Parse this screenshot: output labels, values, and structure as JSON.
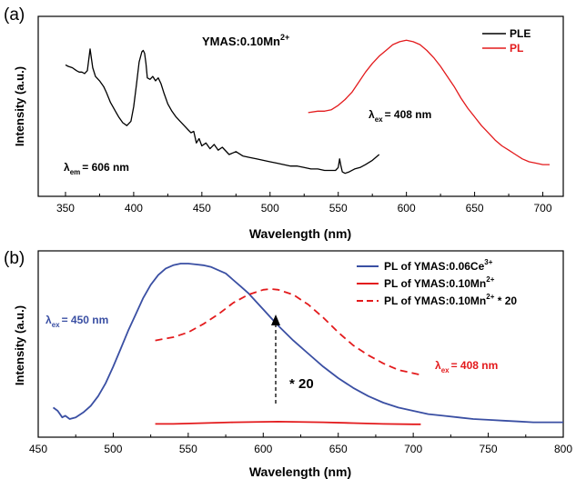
{
  "chart_data": [
    {
      "panel_label": "(a)",
      "type": "line",
      "title": "YMAS:0.10Mn",
      "title_sup": "2+",
      "xlabel": "Wavelength (nm)",
      "ylabel": "Intensity (a.u.)",
      "xlim": [
        330,
        715
      ],
      "xticks": [
        350,
        400,
        450,
        500,
        550,
        600,
        650,
        700
      ],
      "ylim": [
        0,
        1.1
      ],
      "legend_position": "top-right",
      "series": [
        {
          "name": "PLE",
          "color": "#000000",
          "x": [
            350,
            352,
            355,
            358,
            360,
            362,
            364,
            366,
            368,
            370,
            372,
            375,
            378,
            380,
            383,
            386,
            389,
            392,
            395,
            398,
            400,
            402,
            404,
            406,
            407,
            408,
            409,
            410,
            412,
            414,
            416,
            418,
            420,
            422,
            425,
            428,
            431,
            434,
            437,
            440,
            442,
            444,
            446,
            448,
            450,
            453,
            456,
            459,
            462,
            465,
            470,
            475,
            480,
            485,
            490,
            495,
            500,
            505,
            510,
            515,
            520,
            525,
            530,
            535,
            540,
            545,
            548,
            550,
            551,
            552,
            553,
            555,
            558,
            562,
            566,
            570,
            575,
            580
          ],
          "y": [
            0.84,
            0.83,
            0.82,
            0.8,
            0.79,
            0.79,
            0.78,
            0.8,
            0.95,
            0.82,
            0.76,
            0.73,
            0.69,
            0.65,
            0.58,
            0.53,
            0.48,
            0.44,
            0.42,
            0.45,
            0.55,
            0.7,
            0.86,
            0.93,
            0.94,
            0.92,
            0.85,
            0.75,
            0.74,
            0.76,
            0.73,
            0.75,
            0.71,
            0.65,
            0.57,
            0.52,
            0.48,
            0.45,
            0.42,
            0.39,
            0.37,
            0.38,
            0.3,
            0.33,
            0.28,
            0.3,
            0.26,
            0.29,
            0.25,
            0.27,
            0.22,
            0.24,
            0.21,
            0.2,
            0.19,
            0.18,
            0.17,
            0.16,
            0.15,
            0.14,
            0.14,
            0.13,
            0.12,
            0.12,
            0.11,
            0.11,
            0.11,
            0.13,
            0.19,
            0.14,
            0.1,
            0.09,
            0.1,
            0.12,
            0.13,
            0.15,
            0.18,
            0.22
          ]
        },
        {
          "name": "PL",
          "color": "#e31a1c",
          "x": [
            528,
            535,
            540,
            545,
            550,
            555,
            560,
            565,
            570,
            575,
            580,
            585,
            590,
            595,
            600,
            605,
            610,
            615,
            620,
            625,
            630,
            635,
            640,
            645,
            650,
            655,
            660,
            665,
            670,
            675,
            680,
            685,
            690,
            695,
            700,
            705
          ],
          "y": [
            0.51,
            0.52,
            0.52,
            0.53,
            0.56,
            0.6,
            0.65,
            0.72,
            0.79,
            0.85,
            0.9,
            0.94,
            0.98,
            1.0,
            1.01,
            1.0,
            0.98,
            0.94,
            0.89,
            0.83,
            0.76,
            0.69,
            0.61,
            0.54,
            0.48,
            0.42,
            0.37,
            0.32,
            0.28,
            0.25,
            0.22,
            0.19,
            0.17,
            0.16,
            0.15,
            0.15
          ]
        }
      ],
      "annotations": [
        {
          "base": "λ",
          "sub": "em",
          "rest": "= 606 nm"
        },
        {
          "base": "λ",
          "sub": "ex",
          "rest": "= 408 nm"
        }
      ]
    },
    {
      "panel_label": "(b)",
      "type": "line",
      "xlabel": "Wavelength (nm)",
      "ylabel": "Intensity (a.u.)",
      "xlim": [
        450,
        800
      ],
      "xticks": [
        450,
        500,
        550,
        600,
        650,
        700,
        750,
        800
      ],
      "ylim": [
        0,
        1.0
      ],
      "legend_position": "top-right",
      "series": [
        {
          "name": "PL of YMAS:0.06Ce",
          "name_sup": "3+",
          "color": "#3a4fa3",
          "style": "solid",
          "x": [
            460,
            463,
            466,
            468,
            471,
            475,
            480,
            485,
            490,
            495,
            500,
            505,
            510,
            515,
            520,
            525,
            530,
            535,
            540,
            545,
            550,
            555,
            560,
            565,
            570,
            575,
            580,
            585,
            590,
            595,
            600,
            605,
            610,
            620,
            630,
            640,
            650,
            660,
            670,
            680,
            690,
            700,
            710,
            720,
            730,
            740,
            750,
            760,
            770,
            780,
            790,
            800
          ],
          "y": [
            0.12,
            0.1,
            0.06,
            0.07,
            0.05,
            0.06,
            0.09,
            0.13,
            0.19,
            0.27,
            0.37,
            0.48,
            0.59,
            0.69,
            0.79,
            0.87,
            0.93,
            0.97,
            0.99,
            1.0,
            1.0,
            0.995,
            0.99,
            0.98,
            0.96,
            0.94,
            0.9,
            0.86,
            0.82,
            0.77,
            0.72,
            0.67,
            0.62,
            0.53,
            0.45,
            0.37,
            0.3,
            0.24,
            0.19,
            0.15,
            0.12,
            0.1,
            0.08,
            0.07,
            0.06,
            0.05,
            0.045,
            0.04,
            0.035,
            0.03,
            0.03,
            0.03
          ]
        },
        {
          "name": "PL of YMAS:0.10Mn",
          "name_sup": "2+",
          "color": "#e31a1c",
          "style": "solid",
          "x": [
            528,
            540,
            560,
            580,
            600,
            610,
            620,
            640,
            660,
            680,
            700,
            705
          ],
          "y": [
            0.02,
            0.02,
            0.025,
            0.03,
            0.033,
            0.034,
            0.033,
            0.03,
            0.025,
            0.02,
            0.018,
            0.018
          ]
        },
        {
          "name": "PL of YMAS:0.10Mn",
          "name_sup": "2+",
          "name_suffix": " * 20",
          "color": "#e31a1c",
          "style": "dashed",
          "x": [
            528,
            540,
            550,
            560,
            570,
            580,
            590,
            600,
            605,
            610,
            620,
            630,
            640,
            650,
            660,
            670,
            680,
            690,
            700,
            705
          ],
          "y": [
            0.53,
            0.55,
            0.58,
            0.63,
            0.69,
            0.76,
            0.81,
            0.84,
            0.845,
            0.84,
            0.81,
            0.75,
            0.67,
            0.58,
            0.5,
            0.44,
            0.39,
            0.35,
            0.33,
            0.32
          ]
        }
      ],
      "annotations": [
        {
          "base": "λ",
          "sub": "ex",
          "rest": "= 450 nm",
          "color": "#3a4fa3"
        },
        {
          "base": "λ",
          "sub": "ex",
          "rest": "= 408 nm",
          "color": "#e31a1c"
        },
        {
          "text": "* 20"
        }
      ]
    }
  ]
}
